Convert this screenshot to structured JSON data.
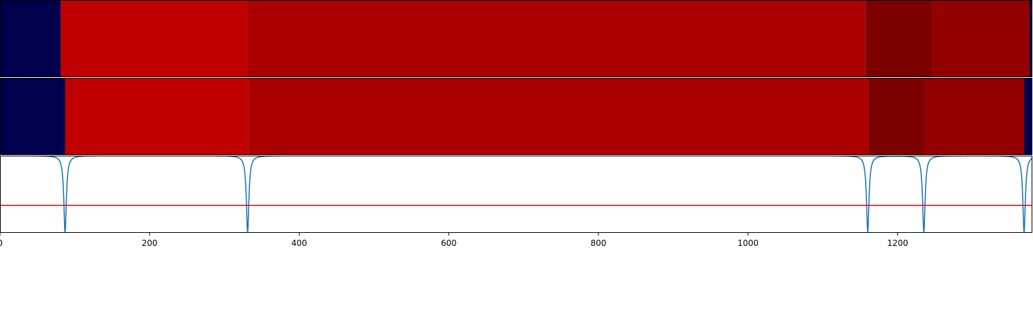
{
  "chart_data": [
    {
      "type": "heatmap",
      "row": "top",
      "xlim": [
        0,
        1380
      ],
      "segments": [
        {
          "start": 0,
          "end": 81,
          "color": "#00004c"
        },
        {
          "start": 81,
          "end": 331,
          "color": "#c00000"
        },
        {
          "start": 331,
          "end": 1157,
          "color": "#ab0000"
        },
        {
          "start": 1157,
          "end": 1246,
          "color": "#7c0000"
        },
        {
          "start": 1246,
          "end": 1376,
          "color": "#930000"
        },
        {
          "start": 1376,
          "end": 1380,
          "color": "#00004c"
        }
      ]
    },
    {
      "type": "heatmap",
      "row": "bottom",
      "xlim": [
        0,
        1380
      ],
      "segments": [
        {
          "start": 0,
          "end": 87,
          "color": "#00004c"
        },
        {
          "start": 87,
          "end": 332,
          "color": "#c00000"
        },
        {
          "start": 332,
          "end": 1161,
          "color": "#ab0000"
        },
        {
          "start": 1161,
          "end": 1235,
          "color": "#7c0000"
        },
        {
          "start": 1235,
          "end": 1369,
          "color": "#930000"
        },
        {
          "start": 1369,
          "end": 1380,
          "color": "#00004c"
        }
      ]
    },
    {
      "type": "line",
      "xlim": [
        0,
        1380
      ],
      "ylim": [
        -0.55,
        1.0
      ],
      "xticks": [
        "0",
        "200",
        "400",
        "600",
        "800",
        "1000",
        "1200"
      ],
      "xtick_values": [
        0,
        200,
        400,
        600,
        800,
        1000,
        1200
      ],
      "series": [
        {
          "color": "#1f77b4",
          "baseline": 1.0,
          "dips": [
            {
              "x": 87,
              "depth": 1.55,
              "width": 2.0
            },
            {
              "x": 331,
              "depth": 1.55,
              "width": 2.0
            },
            {
              "x": 1160,
              "depth": 1.55,
              "width": 2.0
            },
            {
              "x": 1235,
              "depth": 1.55,
              "width": 2.0
            },
            {
              "x": 1369,
              "depth": 1.55,
              "width": 2.0
            }
          ]
        }
      ],
      "threshold": {
        "y": 0.0,
        "color": "#ff0000"
      }
    }
  ]
}
